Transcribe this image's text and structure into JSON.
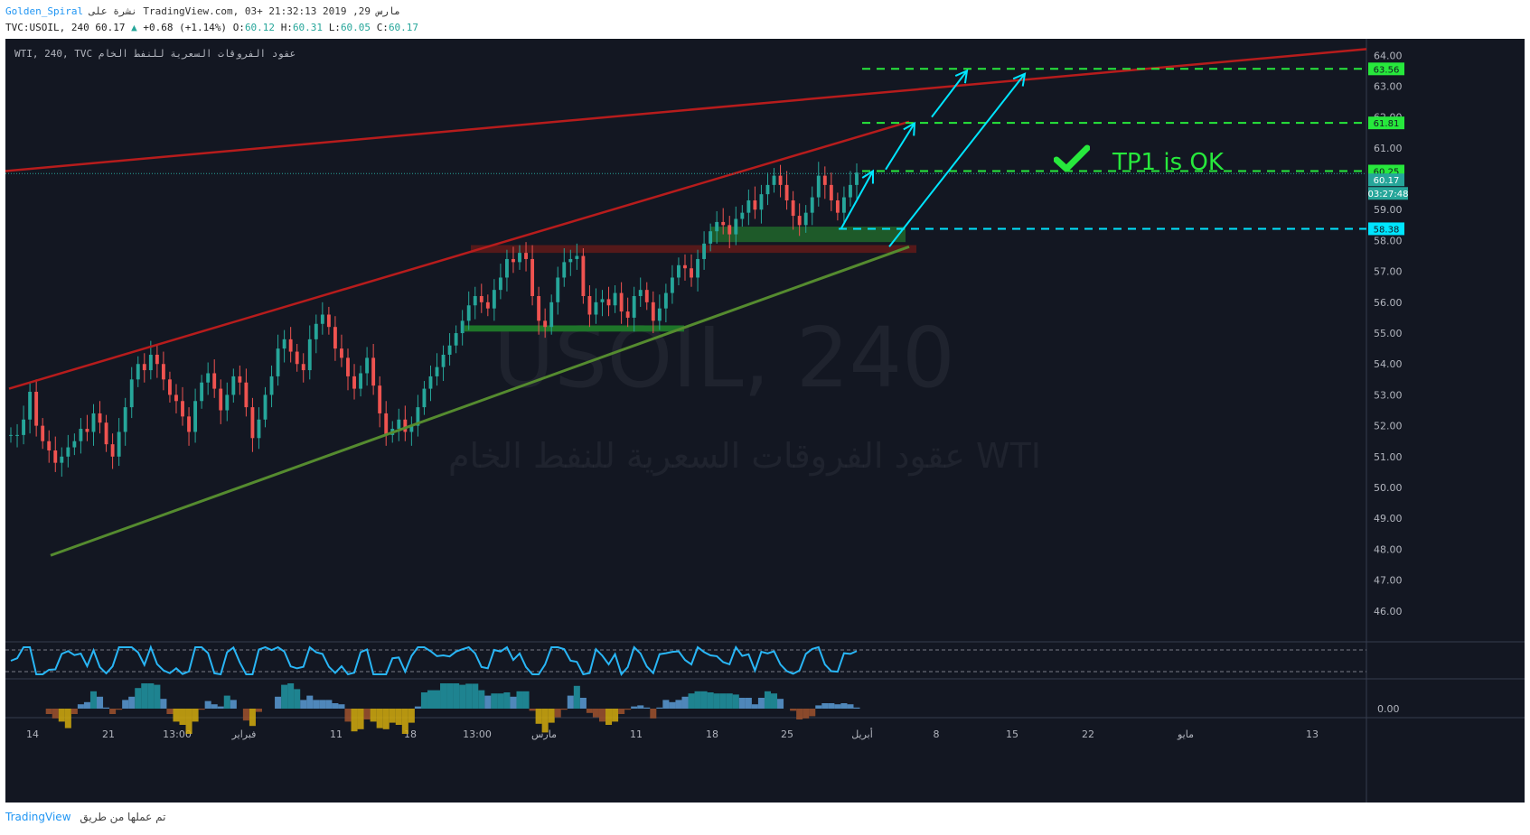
{
  "header": {
    "user": "Golden_Spiral",
    "published": "نشرة على TradingView.com, مارس 29, 2019 21:32:13 +03",
    "symbol_line": "TVC:USOIL, 240",
    "last": "60.17",
    "change": "+0.68 (+1.14%)",
    "o_label": "O:",
    "o": "60.12",
    "h_label": "H:",
    "h": "60.31",
    "l_label": "L:",
    "l": "60.05",
    "c_label": "C:",
    "c": "60.17"
  },
  "legend": "WTI, 240, TVC عقود الفروقات السعرية للنفط الخام",
  "watermark": {
    "main": "USOIL, 240",
    "sub": "عقود الفروقات السعرية للنفط الخام WTI"
  },
  "annotation": {
    "text": "TP1 is OK"
  },
  "footer": {
    "brand": "TradingView",
    "made_with": "تم عملها من طريق"
  },
  "colors": {
    "background": "#131722",
    "up": "#26a69a",
    "down": "#ef5350",
    "trend_red": "#b71c1c",
    "trend_green": "#4caf50",
    "target_green": "#27e83c",
    "arrow_cyan": "#00e5ff",
    "rsi": "#29b6f6"
  },
  "chart_data": {
    "type": "candlestick",
    "y_range": [
      45.0,
      64.3
    ],
    "y_ticks": [
      "64.00",
      "63.00",
      "62.00",
      "61.00",
      "60.00",
      "59.00",
      "58.00",
      "57.00",
      "56.00",
      "55.00",
      "54.00",
      "53.00",
      "52.00",
      "51.00",
      "50.00",
      "49.00",
      "48.00",
      "47.00",
      "46.00"
    ],
    "x_ticks": [
      "14",
      "21",
      "13:00",
      "فبراير",
      "11",
      "18",
      "13:00",
      "مارس",
      "11",
      "18",
      "25",
      "أبريل",
      "8",
      "15",
      "22",
      "مايو",
      "13"
    ],
    "price_labels": [
      {
        "value": 63.56,
        "text": "63.56",
        "kind": "green"
      },
      {
        "value": 61.81,
        "text": "61.81",
        "kind": "green"
      },
      {
        "value": 60.25,
        "text": "60.25",
        "kind": "green"
      },
      {
        "value": 60.17,
        "text": "60.17",
        "kind": "last"
      },
      {
        "value": 58.38,
        "text": "58.38",
        "kind": "cyan"
      }
    ],
    "countdown": "03:27:48",
    "target_levels": [
      63.56,
      61.81,
      60.25
    ],
    "support_level": 58.38,
    "last_price": 60.17,
    "candles_path": [
      [
        0,
        51.7
      ],
      [
        1,
        51.7
      ],
      [
        2,
        52.2
      ],
      [
        3,
        53.1
      ],
      [
        4,
        52.0
      ],
      [
        5,
        51.5
      ],
      [
        6,
        51.2
      ],
      [
        7,
        50.8
      ],
      [
        8,
        51.0
      ],
      [
        9,
        51.3
      ],
      [
        10,
        51.5
      ],
      [
        11,
        51.9
      ],
      [
        12,
        51.8
      ],
      [
        13,
        52.4
      ],
      [
        14,
        52.1
      ],
      [
        15,
        51.4
      ],
      [
        16,
        51.0
      ],
      [
        17,
        51.8
      ],
      [
        18,
        52.6
      ],
      [
        19,
        53.5
      ],
      [
        20,
        54.0
      ],
      [
        21,
        53.8
      ],
      [
        22,
        54.3
      ],
      [
        23,
        54.0
      ],
      [
        24,
        53.5
      ],
      [
        25,
        53.0
      ],
      [
        26,
        52.8
      ],
      [
        27,
        52.3
      ],
      [
        28,
        51.8
      ],
      [
        29,
        52.8
      ],
      [
        30,
        53.4
      ],
      [
        31,
        53.7
      ],
      [
        32,
        53.2
      ],
      [
        33,
        52.5
      ],
      [
        34,
        53.0
      ],
      [
        35,
        53.6
      ],
      [
        36,
        53.4
      ],
      [
        37,
        52.6
      ],
      [
        38,
        51.6
      ],
      [
        39,
        52.2
      ],
      [
        40,
        53.0
      ],
      [
        41,
        53.6
      ],
      [
        42,
        54.5
      ],
      [
        43,
        54.8
      ],
      [
        44,
        54.4
      ],
      [
        45,
        54.0
      ],
      [
        46,
        53.8
      ],
      [
        47,
        54.8
      ],
      [
        48,
        55.3
      ],
      [
        49,
        55.6
      ],
      [
        50,
        55.2
      ],
      [
        51,
        54.5
      ],
      [
        52,
        54.2
      ],
      [
        53,
        53.6
      ],
      [
        54,
        53.2
      ],
      [
        55,
        53.7
      ],
      [
        56,
        54.2
      ],
      [
        57,
        53.3
      ],
      [
        58,
        52.4
      ],
      [
        59,
        51.7
      ],
      [
        60,
        51.9
      ],
      [
        61,
        52.2
      ],
      [
        62,
        51.8
      ],
      [
        63,
        52.0
      ],
      [
        64,
        52.6
      ],
      [
        65,
        53.2
      ],
      [
        66,
        53.6
      ],
      [
        67,
        53.9
      ],
      [
        68,
        54.3
      ],
      [
        69,
        54.6
      ],
      [
        70,
        55.0
      ],
      [
        71,
        55.4
      ],
      [
        72,
        55.9
      ],
      [
        73,
        56.2
      ],
      [
        74,
        56.0
      ],
      [
        75,
        55.8
      ],
      [
        76,
        56.4
      ],
      [
        77,
        56.8
      ],
      [
        78,
        57.4
      ],
      [
        79,
        57.3
      ],
      [
        80,
        57.6
      ],
      [
        81,
        57.4
      ],
      [
        82,
        56.2
      ],
      [
        83,
        55.4
      ],
      [
        84,
        55.2
      ],
      [
        85,
        56.0
      ],
      [
        86,
        56.8
      ],
      [
        87,
        57.3
      ],
      [
        88,
        57.4
      ],
      [
        89,
        57.5
      ],
      [
        90,
        56.2
      ],
      [
        91,
        55.6
      ],
      [
        92,
        56.0
      ],
      [
        93,
        56.1
      ],
      [
        94,
        55.9
      ],
      [
        95,
        56.3
      ],
      [
        96,
        55.7
      ],
      [
        97,
        55.5
      ],
      [
        98,
        56.2
      ],
      [
        99,
        56.4
      ],
      [
        100,
        56.0
      ],
      [
        101,
        55.4
      ],
      [
        102,
        55.8
      ],
      [
        103,
        56.3
      ],
      [
        104,
        56.8
      ],
      [
        105,
        57.2
      ],
      [
        106,
        57.1
      ],
      [
        107,
        56.8
      ],
      [
        108,
        57.4
      ],
      [
        109,
        57.9
      ],
      [
        110,
        58.3
      ],
      [
        111,
        58.6
      ],
      [
        112,
        58.5
      ],
      [
        113,
        58.2
      ],
      [
        114,
        58.7
      ],
      [
        115,
        58.9
      ],
      [
        116,
        59.3
      ],
      [
        117,
        59.0
      ],
      [
        118,
        59.5
      ],
      [
        119,
        59.8
      ],
      [
        120,
        60.1
      ],
      [
        121,
        59.8
      ],
      [
        122,
        59.3
      ],
      [
        123,
        58.8
      ],
      [
        124,
        58.5
      ],
      [
        125,
        58.9
      ],
      [
        126,
        59.4
      ],
      [
        127,
        60.1
      ],
      [
        128,
        59.8
      ],
      [
        129,
        59.3
      ],
      [
        130,
        58.9
      ],
      [
        131,
        59.4
      ],
      [
        132,
        59.8
      ],
      [
        133,
        60.2
      ]
    ],
    "rsi_range": [
      20,
      80
    ],
    "rsi_bands": [
      70,
      30
    ],
    "osc_zero_label": "0.00"
  }
}
